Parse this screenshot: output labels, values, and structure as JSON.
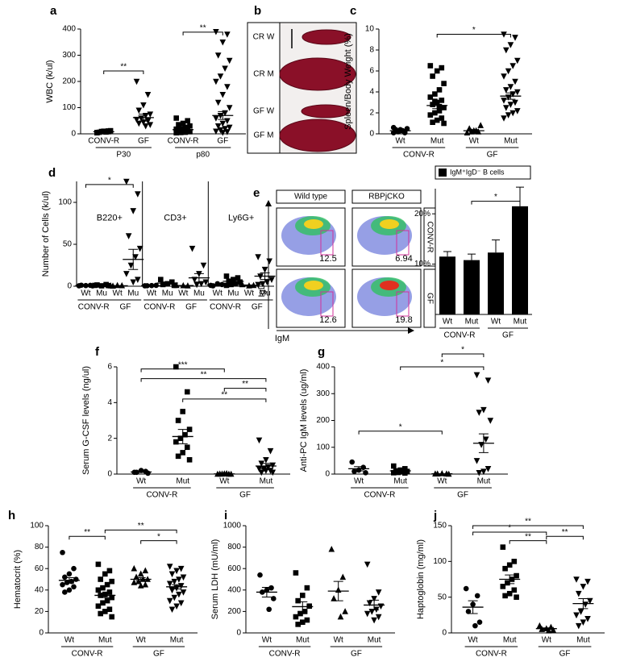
{
  "chart_data": [
    {
      "type": "dot",
      "label": "a",
      "ylabel": "WBC (k/ul)",
      "ylim": [
        0,
        400
      ],
      "yticks": [
        0,
        100,
        200,
        300,
        400
      ],
      "categories": [
        "CONV-R",
        "GF",
        "CONV-R",
        "GF"
      ],
      "groups": [
        "P30",
        "p80"
      ],
      "markers": [
        "square",
        "triangle-down",
        "square",
        "triangle-down"
      ],
      "points": [
        [
          5,
          8,
          10,
          6,
          12,
          7,
          9,
          4,
          11,
          8
        ],
        [
          200,
          150,
          110,
          90,
          75,
          70,
          60,
          55,
          50,
          45,
          40,
          35,
          30
        ],
        [
          60,
          50,
          40,
          35,
          30,
          25,
          20,
          18,
          15,
          12,
          10,
          8,
          6,
          5,
          4
        ],
        [
          390,
          380,
          350,
          300,
          280,
          250,
          220,
          200,
          180,
          150,
          120,
          100,
          80,
          70,
          60,
          50,
          40,
          30,
          25,
          20,
          15,
          10,
          8,
          5
        ]
      ],
      "means": [
        8,
        62,
        16,
        70
      ],
      "sems": [
        1,
        13,
        4,
        15
      ],
      "annotations": [
        "**",
        "**"
      ]
    },
    {
      "type": "image",
      "label": "b",
      "labels": [
        "CR W",
        "CR M",
        "GF W",
        "GF M"
      ]
    },
    {
      "type": "dot",
      "label": "c",
      "ylabel": "Spleen/Body Weight (%)",
      "ylim": [
        0,
        10
      ],
      "yticks": [
        0,
        2,
        4,
        6,
        8,
        10
      ],
      "categories": [
        "Wt",
        "Mut",
        "Wt",
        "Mut"
      ],
      "groups": [
        "CONV-R",
        "GF"
      ],
      "markers": [
        "circle",
        "square",
        "triangle",
        "triangle-down"
      ],
      "points": [
        [
          0.1,
          0.2,
          0.3,
          0.4,
          0.5,
          0.3,
          0.2,
          0.6,
          0.1,
          0.4
        ],
        [
          6.5,
          6.3,
          6,
          5.5,
          4.8,
          4.2,
          3.8,
          3.5,
          3.2,
          3,
          2.8,
          2.5,
          2.2,
          2,
          1.8,
          1.5,
          1.3,
          1.1,
          1,
          2.6,
          3.1
        ],
        [
          0.1,
          0.2,
          0.3,
          0.5,
          0.8,
          0.3,
          0.2
        ],
        [
          9.5,
          9.2,
          8.5,
          8,
          7,
          6.5,
          6,
          5.5,
          5,
          4.5,
          4.2,
          4,
          3.8,
          3.5,
          3.2,
          3,
          2.8,
          2.5,
          2.2,
          2,
          1.8,
          1.5
        ]
      ],
      "means": [
        0.3,
        2.7,
        0.3,
        3.6
      ],
      "sems": [
        0.05,
        0.3,
        0.1,
        0.3
      ],
      "annotations": [
        "*"
      ]
    },
    {
      "type": "dot",
      "label": "d",
      "ylabel": "Number of Cells (k/ul)",
      "ylim": [
        0,
        125
      ],
      "yticks": [
        0,
        50,
        100
      ],
      "subpanels": [
        "B220+",
        "CD3+",
        "Ly6G+"
      ],
      "categories": [
        "Wt",
        "Mu",
        "Wt",
        "Mu",
        "Wt",
        "Mu",
        "Wt",
        "Mu",
        "Wt",
        "Mu",
        "Wt",
        "Mu"
      ],
      "groups": [
        "CONV-R",
        "GF",
        "CONV-R",
        "GF",
        "CONV-R",
        "GF"
      ],
      "markers": [
        "circle",
        "square",
        "triangle",
        "triangle-down",
        "circle",
        "square",
        "triangle",
        "triangle-down",
        "circle",
        "square",
        "triangle",
        "triangle-down"
      ],
      "points": [
        [
          0.5,
          1,
          0.8,
          1.2,
          0.4
        ],
        [
          1,
          2,
          0.5,
          1.5,
          0.8
        ],
        [
          0.5,
          0.8,
          1,
          0.3
        ],
        [
          125,
          110,
          90,
          60,
          45,
          35,
          25,
          15,
          8,
          5
        ],
        [
          0.5,
          1,
          0.8,
          0.6
        ],
        [
          8,
          5,
          3,
          2,
          1
        ],
        [
          1,
          0.5,
          0.8
        ],
        [
          45,
          25,
          15,
          8,
          5,
          3,
          2
        ],
        [
          1,
          2,
          3,
          0.5
        ],
        [
          12,
          10,
          8,
          6,
          5,
          3,
          2,
          1
        ],
        [
          2,
          1,
          0.5
        ],
        [
          35,
          30,
          20,
          12,
          8,
          5,
          3,
          2
        ]
      ],
      "means": [
        0.8,
        1.2,
        0.6,
        32,
        0.7,
        3.8,
        0.8,
        10,
        1.6,
        5.9,
        1.2,
        12
      ],
      "sems": [
        0.15,
        0.3,
        0.15,
        12,
        0.1,
        1.3,
        0.15,
        5,
        0.5,
        1.4,
        0.4,
        4
      ],
      "annotations": [
        "*"
      ]
    },
    {
      "type": "flow",
      "label": "e",
      "columns": [
        "Wild type",
        "RBPjCKO"
      ],
      "rows": [
        "CONV-R",
        "GF"
      ],
      "xlabel": "IgM",
      "ylabel": "IgD",
      "gates": [
        "12.5",
        "6.94",
        "12.6",
        "19.8"
      ]
    },
    {
      "type": "bar",
      "ylim": [
        0,
        25
      ],
      "yticks": [
        {
          "value": 10,
          "label": "10%"
        },
        {
          "value": 20,
          "label": "20%"
        }
      ],
      "categories": [
        "Wt",
        "Mut",
        "Wt",
        "Mut"
      ],
      "groups": [
        "CONV-R",
        "GF"
      ],
      "series": [
        {
          "name": "IgM⁺IgD⁻ B cells",
          "color": "#000000",
          "values": [
            11.5,
            10.8,
            12.3,
            21.5
          ],
          "errors": [
            1,
            1.2,
            2.5,
            3.8
          ]
        }
      ],
      "annotations": [
        "*"
      ]
    },
    {
      "type": "dot",
      "label": "f",
      "ylabel": "Serum G-CSF levels (ng/ul)",
      "ylim": [
        0,
        6
      ],
      "yticks": [
        0,
        2,
        4,
        6
      ],
      "categories": [
        "Wt",
        "Mut",
        "Wt",
        "Mut"
      ],
      "groups": [
        "CONV-R",
        "GF"
      ],
      "markers": [
        "circle",
        "square",
        "triangle",
        "triangle-down"
      ],
      "points": [
        [
          0.1,
          0.15,
          0.2,
          0.1,
          0.05
        ],
        [
          6,
          4.6,
          3.5,
          3,
          2.5,
          2.2,
          2,
          1.8,
          1.5,
          1.2,
          1,
          0.8
        ],
        [
          0,
          0,
          0.02,
          0.01,
          0,
          0.03,
          0.01
        ],
        [
          1.9,
          1.3,
          0.8,
          0.6,
          0.5,
          0.4,
          0.3,
          0.3,
          0.2,
          0.2,
          0.1,
          0.1
        ]
      ],
      "means": [
        0.12,
        2.1,
        0.01,
        0.45
      ],
      "sems": [
        0.03,
        0.4,
        0.005,
        0.15
      ],
      "annotations": [
        "***",
        "**",
        "**",
        "**"
      ]
    },
    {
      "type": "dot",
      "label": "g",
      "ylabel": "Anti-PC IgM levels (ug/ml)",
      "ylim": [
        0,
        400
      ],
      "yticks": [
        0,
        100,
        200,
        300,
        400
      ],
      "categories": [
        "Wt",
        "Mut",
        "Wt",
        "Mut"
      ],
      "groups": [
        "CONV-R",
        "GF"
      ],
      "markers": [
        "circle",
        "square",
        "triangle",
        "triangle-down"
      ],
      "points": [
        [
          45,
          25,
          15,
          10,
          5
        ],
        [
          30,
          20,
          15,
          12,
          10,
          8,
          6,
          5,
          4
        ],
        [
          1,
          1,
          2,
          1,
          0
        ],
        [
          370,
          350,
          240,
          230,
          200,
          130,
          110,
          50,
          20,
          10,
          5
        ]
      ],
      "means": [
        20,
        12,
        1,
        115
      ],
      "sems": [
        8,
        3,
        0.3,
        35
      ],
      "annotations": [
        "*",
        "*",
        "*"
      ]
    },
    {
      "type": "dot",
      "label": "h",
      "ylabel": "Hematocrit (%)",
      "ylim": [
        0,
        100
      ],
      "yticks": [
        0,
        20,
        40,
        60,
        80,
        100
      ],
      "categories": [
        "Wt",
        "Mut",
        "Wt",
        "Mut"
      ],
      "groups": [
        "CONV-R",
        "GF"
      ],
      "markers": [
        "circle",
        "square",
        "triangle",
        "triangle-down"
      ],
      "points": [
        [
          75,
          60,
          55,
          52,
          50,
          48,
          47,
          45,
          43,
          40,
          38
        ],
        [
          64,
          58,
          55,
          50,
          48,
          45,
          42,
          40,
          38,
          36,
          35,
          33,
          30,
          28,
          25,
          22,
          20,
          18,
          15
        ],
        [
          60,
          58,
          55,
          52,
          50,
          50,
          48,
          47,
          45,
          44
        ],
        [
          62,
          60,
          58,
          55,
          52,
          50,
          48,
          46,
          44,
          42,
          40,
          38,
          36,
          33,
          30,
          28,
          25,
          22
        ]
      ],
      "means": [
        49,
        35,
        50,
        43
      ],
      "sems": [
        2.5,
        2,
        1.5,
        2
      ],
      "annotations": [
        "**",
        "**",
        "*"
      ]
    },
    {
      "type": "dot",
      "label": "i",
      "ylabel": "Serum LDH (mU/ml)",
      "ylim": [
        0,
        1000
      ],
      "yticks": [
        0,
        200,
        400,
        600,
        800,
        1000
      ],
      "categories": [
        "Wt",
        "Mut",
        "Wt",
        "Mut"
      ],
      "groups": [
        "CONV-R",
        "GF"
      ],
      "markers": [
        "circle",
        "square",
        "triangle",
        "triangle-down"
      ],
      "points": [
        [
          540,
          420,
          400,
          380,
          320,
          220
        ],
        [
          560,
          420,
          350,
          300,
          250,
          200,
          180,
          150,
          120,
          100,
          80
        ],
        [
          780,
          520,
          400,
          320,
          200,
          150
        ],
        [
          640,
          380,
          320,
          280,
          250,
          220,
          200,
          180,
          150,
          120
        ]
      ],
      "means": [
        380,
        245,
        390,
        260
      ],
      "sems": [
        45,
        45,
        90,
        45
      ]
    },
    {
      "type": "dot",
      "label": "j",
      "ylabel": "Haptoglobin (mg/ml)",
      "ylim": [
        0,
        150
      ],
      "yticks": [
        0,
        50,
        100,
        150
      ],
      "categories": [
        "Wt",
        "Mut",
        "Wt",
        "Mut"
      ],
      "groups": [
        "CONV-R",
        "GF"
      ],
      "markers": [
        "circle",
        "square",
        "triangle",
        "triangle-down"
      ],
      "points": [
        [
          62,
          52,
          40,
          30,
          15,
          10
        ],
        [
          120,
          100,
          95,
          90,
          80,
          75,
          70,
          65,
          60,
          55,
          52,
          50
        ],
        [
          10,
          8,
          6,
          5,
          4,
          3
        ],
        [
          75,
          72,
          65,
          55,
          45,
          40,
          30,
          25,
          20,
          15,
          10
        ]
      ],
      "means": [
        36,
        75,
        6,
        41
      ],
      "sems": [
        9,
        6,
        1,
        7
      ],
      "annotations": [
        "**",
        "**",
        "*",
        "**"
      ]
    }
  ]
}
